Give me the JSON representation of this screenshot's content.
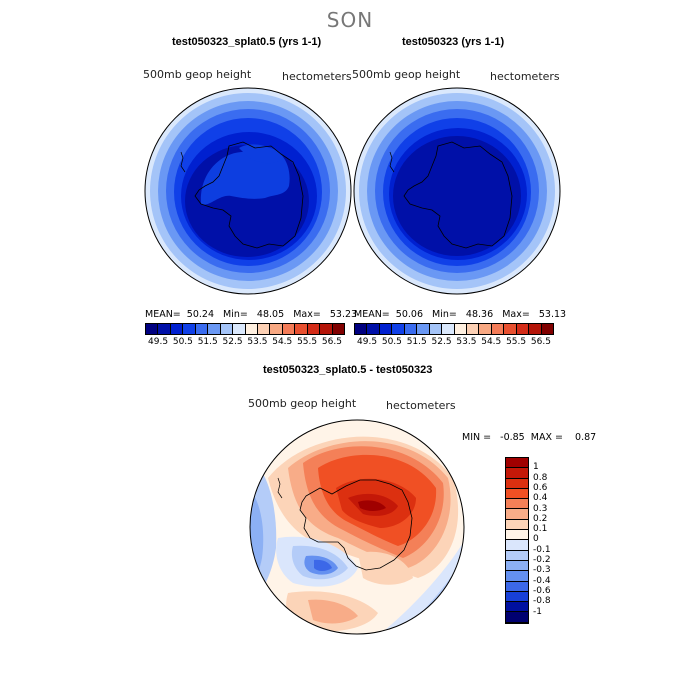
{
  "season": "SON",
  "panel1": {
    "title": "test050323_splat0.5 (yrs 1-1)",
    "variable": "500mb geop height",
    "units": "hectometers",
    "stats": "MEAN=  50.24   Min=   48.05   Max=   53.23"
  },
  "panel2": {
    "title": "test050323 (yrs 1-1)",
    "variable": "500mb geop height",
    "units": "hectometers",
    "stats": "MEAN=  50.06   Min=   48.36   Max=   53.13"
  },
  "panel3": {
    "title": "test050323_splat0.5 - test050323",
    "variable": "500mb geop height",
    "units": "hectometers",
    "stats": "MIN =   -0.85  MAX =    0.87"
  },
  "colorbar_top": {
    "ticks": [
      "49.5",
      "50.5",
      "51.5",
      "52.5",
      "53.5",
      "54.5",
      "55.5",
      "56.5"
    ],
    "colors": [
      "#000080",
      "#0010a8",
      "#0020d0",
      "#1040e8",
      "#3a6cf0",
      "#6a98f4",
      "#a4c4f8",
      "#dae8fc",
      "#fff0e0",
      "#fcd0b4",
      "#f8a882",
      "#f47c58",
      "#e85030",
      "#d42c18",
      "#b41408",
      "#800000"
    ]
  },
  "colorbar_diff": {
    "labels": [
      "1",
      "0.8",
      "0.6",
      "0.4",
      "0.3",
      "0.2",
      "0.1",
      "0",
      "-0.1",
      "-0.2",
      "-0.3",
      "-0.4",
      "-0.6",
      "-0.8",
      "-1"
    ],
    "colors": [
      "#a00000",
      "#c41808",
      "#dc3010",
      "#f05024",
      "#f48058",
      "#f8ac88",
      "#fcd4b8",
      "#fff4e8",
      "#dae6fc",
      "#b4ccf8",
      "#8cb0f4",
      "#6490f0",
      "#3c68e8",
      "#1840d8",
      "#0010a0",
      "#000070"
    ]
  }
}
